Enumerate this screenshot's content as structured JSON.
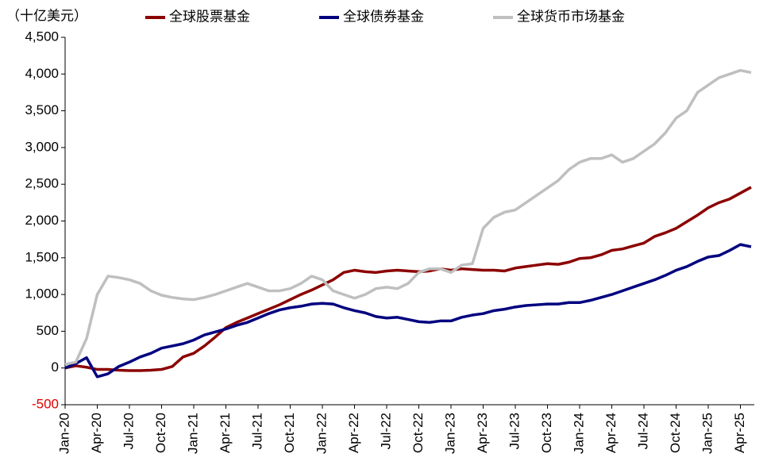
{
  "chart_data": {
    "type": "line",
    "y_unit_label": "（十亿美元）",
    "categories": [
      "Jan-20",
      null,
      null,
      "Apr-20",
      null,
      null,
      "Jul-20",
      null,
      null,
      "Oct-20",
      null,
      null,
      "Jan-21",
      null,
      null,
      "Apr-21",
      null,
      null,
      "Jul-21",
      null,
      null,
      "Oct-21",
      null,
      null,
      "Jan-22",
      null,
      null,
      "Apr-22",
      null,
      null,
      "Jul-22",
      null,
      null,
      "Oct-22",
      null,
      null,
      "Jan-23",
      null,
      null,
      "Apr-23",
      null,
      null,
      "Jul-23",
      null,
      null,
      "Oct-23",
      null,
      null,
      "Jan-24",
      null,
      null,
      "Apr-24",
      null,
      null,
      "Jul-24",
      null,
      null,
      "Oct-24",
      null,
      null,
      "Jan-25",
      null,
      null,
      "Apr-25",
      null
    ],
    "series": [
      {
        "name": "全球股票基金",
        "color": "#8b0000",
        "values": [
          0,
          30,
          10,
          -20,
          -20,
          -30,
          -35,
          -35,
          -30,
          -20,
          20,
          150,
          200,
          300,
          420,
          550,
          620,
          680,
          740,
          800,
          860,
          930,
          1000,
          1060,
          1130,
          1200,
          1300,
          1330,
          1310,
          1300,
          1320,
          1330,
          1320,
          1310,
          1320,
          1350,
          1330,
          1350,
          1340,
          1330,
          1330,
          1320,
          1360,
          1380,
          1400,
          1420,
          1410,
          1440,
          1490,
          1500,
          1540,
          1600,
          1620,
          1660,
          1700,
          1790,
          1840,
          1900,
          1990,
          2080,
          2180,
          2250,
          2300,
          2380,
          2460
        ]
      },
      {
        "name": "全球债券基金",
        "color": "#00007f",
        "values": [
          0,
          60,
          140,
          -120,
          -80,
          20,
          80,
          150,
          200,
          270,
          300,
          330,
          380,
          450,
          490,
          530,
          580,
          620,
          680,
          740,
          790,
          820,
          840,
          870,
          880,
          870,
          820,
          780,
          750,
          700,
          680,
          690,
          660,
          630,
          620,
          640,
          640,
          690,
          720,
          740,
          780,
          800,
          830,
          850,
          860,
          870,
          870,
          890,
          890,
          920,
          960,
          1000,
          1050,
          1100,
          1150,
          1200,
          1260,
          1330,
          1380,
          1450,
          1510,
          1530,
          1600,
          1680,
          1650
        ]
      },
      {
        "name": "全球货币市场基金",
        "color": "#bfbfbf",
        "values": [
          50,
          80,
          400,
          1000,
          1250,
          1230,
          1200,
          1150,
          1050,
          990,
          960,
          940,
          930,
          960,
          1000,
          1050,
          1100,
          1150,
          1100,
          1050,
          1050,
          1080,
          1150,
          1250,
          1200,
          1050,
          1000,
          950,
          1000,
          1080,
          1100,
          1080,
          1150,
          1300,
          1350,
          1350,
          1300,
          1400,
          1420,
          1900,
          2050,
          2120,
          2150,
          2250,
          2350,
          2450,
          2550,
          2700,
          2800,
          2850,
          2850,
          2900,
          2800,
          2850,
          2950,
          3050,
          3200,
          3400,
          3500,
          3750,
          3850,
          3950,
          4000,
          4050,
          4020
        ]
      }
    ],
    "ylim": [
      -500,
      4500
    ],
    "yticks": [
      -500,
      0,
      500,
      {
        "value": 1000,
        "label": "1,000"
      },
      {
        "value": 1500,
        "label": "1,500"
      },
      {
        "value": 2000,
        "label": "2,000"
      },
      {
        "value": 2500,
        "label": "2,500"
      },
      {
        "value": 3000,
        "label": "3,000"
      },
      {
        "value": 3500,
        "label": "3,500"
      },
      {
        "value": 4000,
        "label": "4,000"
      },
      {
        "value": 4500,
        "label": "4,500"
      }
    ],
    "grid": false
  }
}
